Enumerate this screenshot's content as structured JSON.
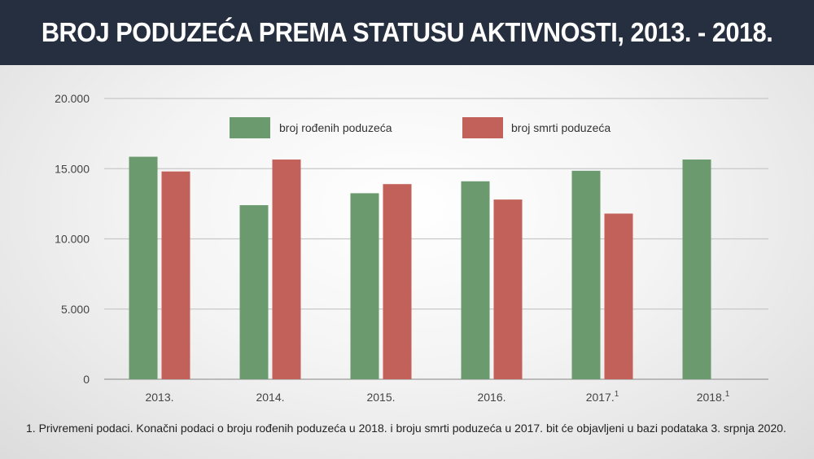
{
  "header": {
    "title": "BROJ PODUZEĆA PREMA STATUSU AKTIVNOSTI, 2013. - 2018."
  },
  "footnote": "1. Privremeni podaci. Konačni podaci o broju rođenih poduzeća u 2018. i broju smrti poduzeća u 2017. bit će objavljeni u bazi podataka 3. srpnja 2020.",
  "colors": {
    "born": "#6a9a6e",
    "dead": "#c2615a",
    "grid": "#c8c8c8"
  },
  "chart_data": {
    "type": "bar",
    "categories": [
      "2013.",
      "2014.",
      "2015.",
      "2016.",
      "2017.",
      "2018."
    ],
    "category_superscripts": [
      "",
      "",
      "",
      "",
      "1",
      "1"
    ],
    "series": [
      {
        "name": "broj rođenih poduzeća",
        "values": [
          15850,
          12400,
          13250,
          14100,
          14850,
          15650
        ]
      },
      {
        "name": "broj smrti poduzeća",
        "values": [
          14800,
          15650,
          13900,
          12800,
          11800,
          null
        ]
      }
    ],
    "ylim": [
      0,
      20000
    ],
    "yticks": [
      0,
      5000,
      10000,
      15000,
      20000
    ],
    "ytick_labels": [
      "0",
      "5.000",
      "10.000",
      "15.000",
      "20.000"
    ],
    "grid": true,
    "legend_position": "top"
  }
}
